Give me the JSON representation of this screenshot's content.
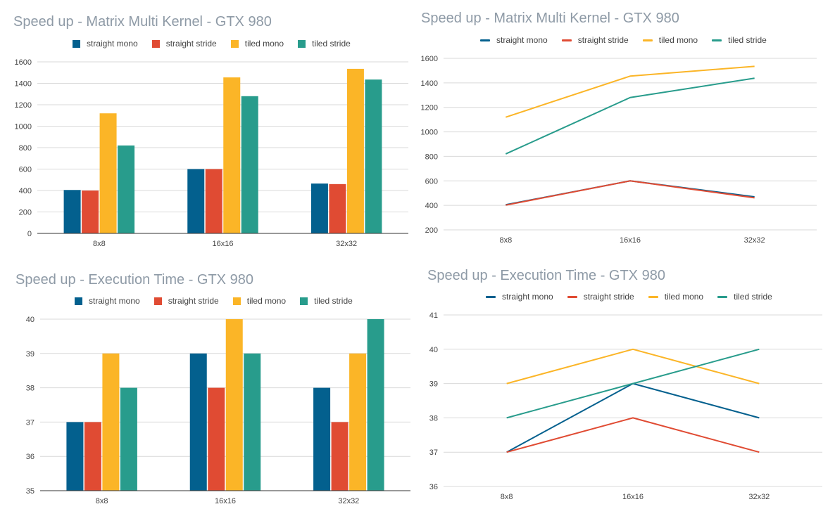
{
  "colors": {
    "straight_mono": "#03608e",
    "straight_stride": "#e04b33",
    "tiled_mono": "#fbb527",
    "tiled_stride": "#289c8c",
    "grid": "#d9d9d9",
    "axis": "#333333"
  },
  "chart_data": [
    {
      "type": "bar",
      "title": "Speed up - Matrix Multi Kernel - GTX 980",
      "categories": [
        "8x8",
        "16x16",
        "32x32"
      ],
      "series": [
        {
          "name": "straight mono",
          "values": [
            405,
            600,
            465
          ]
        },
        {
          "name": "straight stride",
          "values": [
            400,
            600,
            460
          ]
        },
        {
          "name": "tiled mono",
          "values": [
            1120,
            1455,
            1535
          ]
        },
        {
          "name": "tiled stride",
          "values": [
            820,
            1280,
            1435
          ]
        }
      ],
      "yticks": [
        "0",
        "200",
        "400",
        "600",
        "800",
        "1000",
        "1200",
        "1400",
        "1600"
      ],
      "ylim": [
        0,
        1600
      ],
      "legend": "top",
      "grid": true
    },
    {
      "type": "line",
      "title": "Speed up - Matrix Multi Kernel - GTX 980",
      "categories": [
        "8x8",
        "16x16",
        "32x32"
      ],
      "series": [
        {
          "name": "straight mono",
          "values": [
            405,
            600,
            470
          ]
        },
        {
          "name": "straight stride",
          "values": [
            402,
            600,
            462
          ]
        },
        {
          "name": "tiled mono",
          "values": [
            1120,
            1455,
            1535
          ]
        },
        {
          "name": "tiled stride",
          "values": [
            820,
            1280,
            1438
          ]
        }
      ],
      "yticks": [
        "200",
        "400",
        "600",
        "800",
        "1000",
        "1200",
        "1400",
        "1600"
      ],
      "ylim": [
        200,
        1600
      ],
      "legend": "top",
      "grid": true
    },
    {
      "type": "bar",
      "title": "Speed up - Execution Time - GTX 980",
      "categories": [
        "8x8",
        "16x16",
        "32x32"
      ],
      "series": [
        {
          "name": "straight mono",
          "values": [
            37,
            39,
            38
          ]
        },
        {
          "name": "straight stride",
          "values": [
            37,
            38,
            37
          ]
        },
        {
          "name": "tiled mono",
          "values": [
            39,
            40,
            39
          ]
        },
        {
          "name": "tiled stride",
          "values": [
            38,
            39,
            40
          ]
        }
      ],
      "yticks": [
        "35",
        "36",
        "37",
        "38",
        "39",
        "40"
      ],
      "ylim": [
        35,
        40
      ],
      "legend": "top",
      "grid": true
    },
    {
      "type": "line",
      "title": "Speed up - Execution Time - GTX 980",
      "categories": [
        "8x8",
        "16x16",
        "32x32"
      ],
      "series": [
        {
          "name": "straight mono",
          "values": [
            37,
            39,
            38
          ]
        },
        {
          "name": "straight stride",
          "values": [
            37,
            38,
            37
          ]
        },
        {
          "name": "tiled mono",
          "values": [
            39,
            40,
            39
          ]
        },
        {
          "name": "tiled stride",
          "values": [
            38,
            39,
            40
          ]
        }
      ],
      "yticks": [
        "36",
        "37",
        "38",
        "39",
        "40",
        "41"
      ],
      "ylim": [
        36,
        41
      ],
      "legend": "top",
      "grid": true
    }
  ]
}
